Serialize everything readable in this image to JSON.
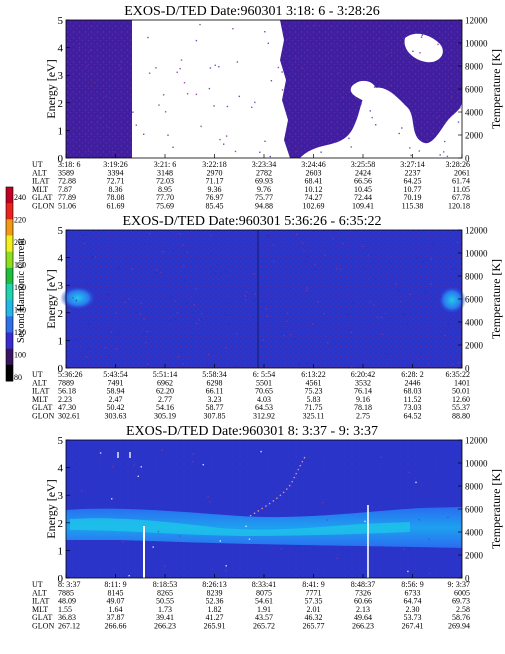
{
  "colorbar": {
    "label": "Second Harmonic Current",
    "ticks": [
      "240",
      "220",
      "200",
      "180",
      "160",
      "140",
      "120",
      "100",
      "80"
    ],
    "colors": [
      "#000000",
      "#3b1460",
      "#3a2bd0",
      "#2f6fe8",
      "#23b7e8",
      "#20d4b0",
      "#1fbe3c",
      "#8fe01c",
      "#f0f01c",
      "#f29a16",
      "#e8241c",
      "#c00020"
    ]
  },
  "chart_data": [
    {
      "type": "heatmap",
      "title": "EXOS-D/TED   Date:960301   3:18: 6 - 3:28:26",
      "ylabel": "Energy [eV]",
      "y2label": "Temperature [K]",
      "ylim": [
        0,
        5
      ],
      "y2lim": [
        0,
        12000
      ],
      "y_ticks": [
        "0",
        "1",
        "2",
        "3",
        "4",
        "5"
      ],
      "y2_ticks": [
        "0",
        "2000",
        "4000",
        "6000",
        "8000",
        "10000",
        "12000"
      ],
      "dominant_color": "#3f1f9f",
      "table": {
        "row_labels": [
          "UT",
          "ALT",
          "ILAT",
          "MLT",
          "GLAT",
          "GLON"
        ],
        "columns": [
          [
            "3:18: 6",
            "3589",
            "72.88",
            "7.87",
            "77.89",
            "51.06"
          ],
          [
            "3:19:26",
            "3394",
            "72.71",
            "8.36",
            "78.08",
            "61.69"
          ],
          [
            "3:21: 6",
            "3148",
            "72.03",
            "8.95",
            "77.70",
            "75.69"
          ],
          [
            "3:22:18",
            "2970",
            "71.17",
            "9.36",
            "76.97",
            "85.45"
          ],
          [
            "3:23:34",
            "2782",
            "69.93",
            "9.76",
            "75.77",
            "94.88"
          ],
          [
            "3:24:46",
            "2603",
            "68.41",
            "10.12",
            "74.27",
            "102.69"
          ],
          [
            "3:25:58",
            "2424",
            "66.56",
            "10.45",
            "72.44",
            "109.41"
          ],
          [
            "3:27:14",
            "2237",
            "64.25",
            "10.77",
            "70.19",
            "115.38"
          ],
          [
            "3:28:26",
            "2061",
            "61.74",
            "11.05",
            "67.78",
            "120.18"
          ]
        ]
      }
    },
    {
      "type": "heatmap",
      "title": "EXOS-D/TED   Date:960301   5:36:26 - 6:35:22",
      "ylabel": "Energy [eV]",
      "y2label": "Temperature [K]",
      "ylim": [
        0,
        5
      ],
      "y2lim": [
        0,
        12000
      ],
      "y_ticks": [
        "0",
        "1",
        "2",
        "3",
        "4",
        "5"
      ],
      "y2_ticks": [
        "0",
        "2000",
        "4000",
        "6000",
        "8000",
        "10000",
        "12000"
      ],
      "dominant_color": "#2a34c8",
      "table": {
        "row_labels": [
          "UT",
          "ALT",
          "ILAT",
          "MLT",
          "GLAT",
          "GLON"
        ],
        "columns": [
          [
            "5:36:26",
            "7889",
            "56.18",
            "2.23",
            "47.30",
            "302.61"
          ],
          [
            "5:43:54",
            "7491",
            "58.94",
            "2.47",
            "50.42",
            "303.63"
          ],
          [
            "5:51:14",
            "6962",
            "62.20",
            "2.77",
            "54.16",
            "305.19"
          ],
          [
            "5:58:34",
            "6298",
            "66.11",
            "3.23",
            "58.77",
            "307.85"
          ],
          [
            "6: 5:54",
            "5501",
            "70.65",
            "4.03",
            "64.53",
            "312.92"
          ],
          [
            "6:13:22",
            "4561",
            "75.23",
            "5.83",
            "71.75",
            "325.11"
          ],
          [
            "6:20:42",
            "3532",
            "76.14",
            "9.16",
            "78.18",
            "2.75"
          ],
          [
            "6:28: 2",
            "2446",
            "68.03",
            "11.52",
            "73.03",
            "64.52"
          ],
          [
            "6:35:22",
            "1401",
            "50.01",
            "12.60",
            "55.37",
            "88.80"
          ]
        ]
      }
    },
    {
      "type": "heatmap",
      "title": "EXOS-D/TED   Date:960301   8: 3:37 - 9: 3:37",
      "ylabel": "Energy [eV]",
      "y2label": "Temperature [K]",
      "ylim": [
        0,
        5
      ],
      "y2lim": [
        0,
        12000
      ],
      "y_ticks": [
        "0",
        "1",
        "2",
        "3",
        "4",
        "5"
      ],
      "y2_ticks": [
        "0",
        "2000",
        "4000",
        "6000",
        "8000",
        "10000",
        "12000"
      ],
      "dominant_color": "#2a34c8",
      "table": {
        "row_labels": [
          "UT",
          "ALT",
          "ILAT",
          "MLT",
          "GLAT",
          "GLON"
        ],
        "columns": [
          [
            "8: 3:37",
            "7885",
            "48.09",
            "1.55",
            "36.83",
            "267.12"
          ],
          [
            "8:11: 9",
            "8145",
            "49.07",
            "1.64",
            "37.87",
            "266.66"
          ],
          [
            "8:18:53",
            "8265",
            "50.55",
            "1.73",
            "39.41",
            "266.23"
          ],
          [
            "8:26:13",
            "8239",
            "52.36",
            "1.82",
            "41.27",
            "265.91"
          ],
          [
            "8:33:41",
            "8075",
            "54.61",
            "1.91",
            "43.57",
            "265.72"
          ],
          [
            "8:41: 9",
            "7771",
            "57.35",
            "2.01",
            "46.32",
            "265.77"
          ],
          [
            "8:48:37",
            "7326",
            "60.66",
            "2.13",
            "49.64",
            "266.23"
          ],
          [
            "8:56: 9",
            "6733",
            "64.74",
            "2.30",
            "53.73",
            "267.41"
          ],
          [
            "9: 3:37",
            "6005",
            "69.73",
            "2.58",
            "58.76",
            "269.94"
          ]
        ]
      }
    }
  ]
}
